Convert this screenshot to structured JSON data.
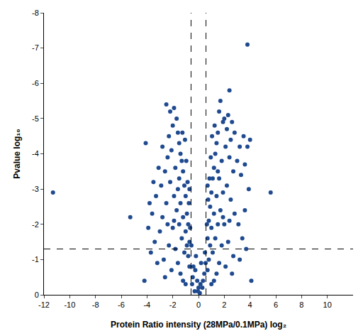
{
  "chart_data": {
    "type": "scatter",
    "x_label": "Protein Ratio intensity (28MPa/0.1MPa) log₂",
    "y_label": "Pvalue log₁₀",
    "color": "#1f4a8f",
    "marker": "circle",
    "grid": false,
    "xlim": [
      -12,
      12
    ],
    "xticks": [
      -12,
      -10,
      -8,
      -6,
      -4,
      -2,
      0,
      2,
      4,
      6,
      8,
      10
    ],
    "ylim": [
      0,
      -8
    ],
    "yticks": [
      0,
      -1,
      -2,
      -3,
      -4,
      -5,
      -6,
      -7,
      -8
    ],
    "reference_lines": {
      "x": [
        -0.58,
        0.58
      ],
      "y": [
        -1.3
      ],
      "line_style": "dash"
    },
    "x": [
      -0.5,
      -0.3,
      0.1,
      0.3,
      -0.1,
      0.45,
      -0.4,
      0.2,
      -0.2,
      0.5,
      -0.55,
      0.0,
      0.35,
      -0.45,
      0.55,
      -0.25,
      0.15,
      -0.05,
      -0.7,
      -0.8,
      -0.9,
      -1.0,
      -1.1,
      -1.2,
      -1.3,
      -1.4,
      -1.5,
      -1.6,
      -1.7,
      -1.9,
      -2.2,
      -2.5,
      -2.0,
      -2.3,
      -2.8,
      -3.1,
      -3.5,
      -3.8,
      -3.3,
      -2.9,
      -2.6,
      -2.4,
      -2.1,
      -1.8,
      -1.6,
      -1.4,
      -1.2,
      -1.0,
      -0.9,
      -0.8,
      -0.7,
      -1.1,
      -1.3,
      -1.5,
      -1.7,
      -1.9,
      -2.2,
      -2.5,
      -2.8,
      -3.0,
      -3.4,
      -3.7,
      -2.7,
      -2.3,
      -2.0,
      -1.8,
      -1.6,
      -1.4,
      -1.2,
      -1.0,
      -2.1,
      -2.6,
      -3.2,
      -4.2,
      -4.1,
      -5.3,
      -11.3,
      -3.9,
      -0.75,
      -0.85,
      -0.95,
      -1.05,
      -1.25,
      -0.7,
      -1.5,
      -1.9,
      -2.4,
      -3.6,
      -0.65,
      0.7,
      0.8,
      0.9,
      1.0,
      1.1,
      1.2,
      1.3,
      1.4,
      1.5,
      1.6,
      1.7,
      2.4,
      1.9,
      2.0,
      2.2,
      2.5,
      2.8,
      3.2,
      3.5,
      3.8,
      4.0,
      3.6,
      3.3,
      3.0,
      2.7,
      2.4,
      2.1,
      1.8,
      1.6,
      1.4,
      1.2,
      1.0,
      0.9,
      0.8,
      0.7,
      1.1,
      1.3,
      1.5,
      1.7,
      1.9,
      2.2,
      2.5,
      2.8,
      3.1,
      3.4,
      3.7,
      2.7,
      2.3,
      2.0,
      1.8,
      1.6,
      1.4,
      1.2,
      1.0,
      2.1,
      2.6,
      3.2,
      4.1,
      3.8,
      5.6,
      3.9,
      0.75,
      0.85,
      0.95,
      1.05,
      1.25,
      0.7,
      1.5,
      1.9,
      2.4,
      3.6,
      0.65,
      2.3,
      2.6
    ],
    "values": [
      -0.3,
      -0.1,
      -0.05,
      -0.2,
      -0.4,
      -0.6,
      -0.8,
      -0.9,
      -1.1,
      -1.2,
      -1.4,
      -0.2,
      -0.4,
      -0.5,
      -0.9,
      -0.7,
      -0.3,
      -0.1,
      -1.5,
      -2.0,
      -2.3,
      -2.8,
      -3.1,
      -3.5,
      -3.8,
      -4.0,
      -4.3,
      -4.6,
      -5.0,
      -5.3,
      -5.2,
      -5.4,
      -4.8,
      -4.5,
      -4.2,
      -3.6,
      -3.2,
      -2.6,
      -2.8,
      -3.1,
      -3.5,
      -3.9,
      -4.1,
      -3.6,
      -3.0,
      -2.6,
      -2.2,
      -1.8,
      -1.4,
      -1.1,
      -0.8,
      -1.2,
      -1.6,
      -2.0,
      -2.4,
      -2.8,
      -3.2,
      -2.6,
      -2.2,
      -1.8,
      -1.5,
      -1.2,
      -1.0,
      -1.4,
      -1.9,
      -1.3,
      -0.9,
      -0.6,
      -0.4,
      -0.3,
      -0.7,
      -0.5,
      -0.9,
      -0.4,
      -4.3,
      -2.2,
      -2.9,
      -1.9,
      -2.6,
      -3.2,
      -3.8,
      -4.4,
      -4.6,
      -3.0,
      -3.3,
      -2.1,
      -2.0,
      -2.3,
      -1.9,
      -1.6,
      -2.1,
      -2.5,
      -2.9,
      -3.3,
      -3.6,
      -4.0,
      -4.3,
      -4.6,
      -5.2,
      -5.5,
      -5.8,
      -4.9,
      -5.0,
      -4.7,
      -4.4,
      -4.6,
      -4.2,
      -4.5,
      -4.2,
      -4.4,
      -3.7,
      -3.4,
      -3.8,
      -3.5,
      -3.9,
      -4.2,
      -3.8,
      -3.3,
      -2.8,
      -2.3,
      -1.9,
      -1.4,
      -1.0,
      -0.7,
      -1.2,
      -1.6,
      -2.0,
      -2.4,
      -2.9,
      -3.1,
      -2.7,
      -2.3,
      -2.0,
      -1.6,
      -1.3,
      -1.1,
      -1.5,
      -2.0,
      -1.4,
      -0.9,
      -0.6,
      -0.4,
      -0.3,
      -0.8,
      -0.6,
      -1.0,
      -0.4,
      -7.1,
      -2.9,
      -3.0,
      -2.7,
      -3.3,
      -3.9,
      -4.5,
      -4.8,
      -3.1,
      -3.5,
      -2.2,
      -2.1,
      -2.4,
      -2.0,
      -5.1,
      -4.9
    ]
  }
}
